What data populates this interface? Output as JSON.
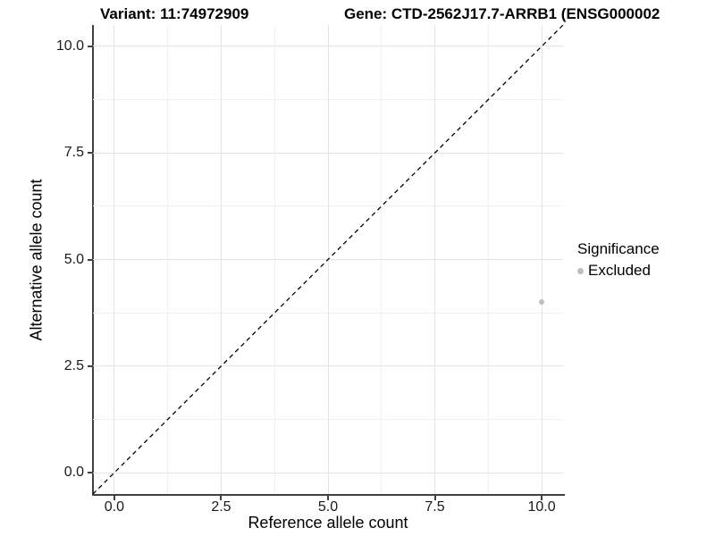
{
  "header": {
    "variant": "Variant: 11:74972909",
    "gene": "Gene: CTD-2562J17.7-ARRB1 (ENSG000002"
  },
  "legend": {
    "title": "Significance",
    "items": [
      {
        "label": "Excluded",
        "color": "#bebebe"
      }
    ]
  },
  "colors": {
    "point": "#bebebe",
    "grid_major": "#e4e4e4",
    "grid_minor": "#f1f1f1",
    "axis_line": "#404040",
    "reference_line": "#000000"
  },
  "chart_data": {
    "type": "scatter",
    "title": "Variant: 11:74972909   Gene: CTD-2562J17.7-ARRB1 (ENSG000002",
    "xlabel": "Reference allele count",
    "ylabel": "Alternative allele count",
    "xlim": [
      -0.5,
      10.5
    ],
    "ylim": [
      -0.5,
      10.5
    ],
    "x_ticks": [
      {
        "v": 0.0,
        "label": "0.0"
      },
      {
        "v": 2.5,
        "label": "2.5"
      },
      {
        "v": 5.0,
        "label": "5.0"
      },
      {
        "v": 7.5,
        "label": "7.5"
      },
      {
        "v": 10.0,
        "label": "10.0"
      }
    ],
    "y_ticks": [
      {
        "v": 0.0,
        "label": "0.0"
      },
      {
        "v": 2.5,
        "label": "2.5"
      },
      {
        "v": 5.0,
        "label": "5.0"
      },
      {
        "v": 7.5,
        "label": "7.5"
      },
      {
        "v": 10.0,
        "label": "10.0"
      }
    ],
    "x_minor_gridlines": [
      1.25,
      3.75,
      6.25,
      8.75
    ],
    "y_minor_gridlines": [
      1.25,
      3.75,
      6.25,
      8.75
    ],
    "grid": "major+minor",
    "legend_position": "right",
    "series": [
      {
        "name": "Excluded",
        "color": "#bebebe",
        "points": [
          {
            "x": 10,
            "y": 4
          }
        ]
      }
    ],
    "reference_line": {
      "type": "identity",
      "slope": 1,
      "intercept": 0,
      "style": "dashed",
      "color": "#000000"
    }
  }
}
